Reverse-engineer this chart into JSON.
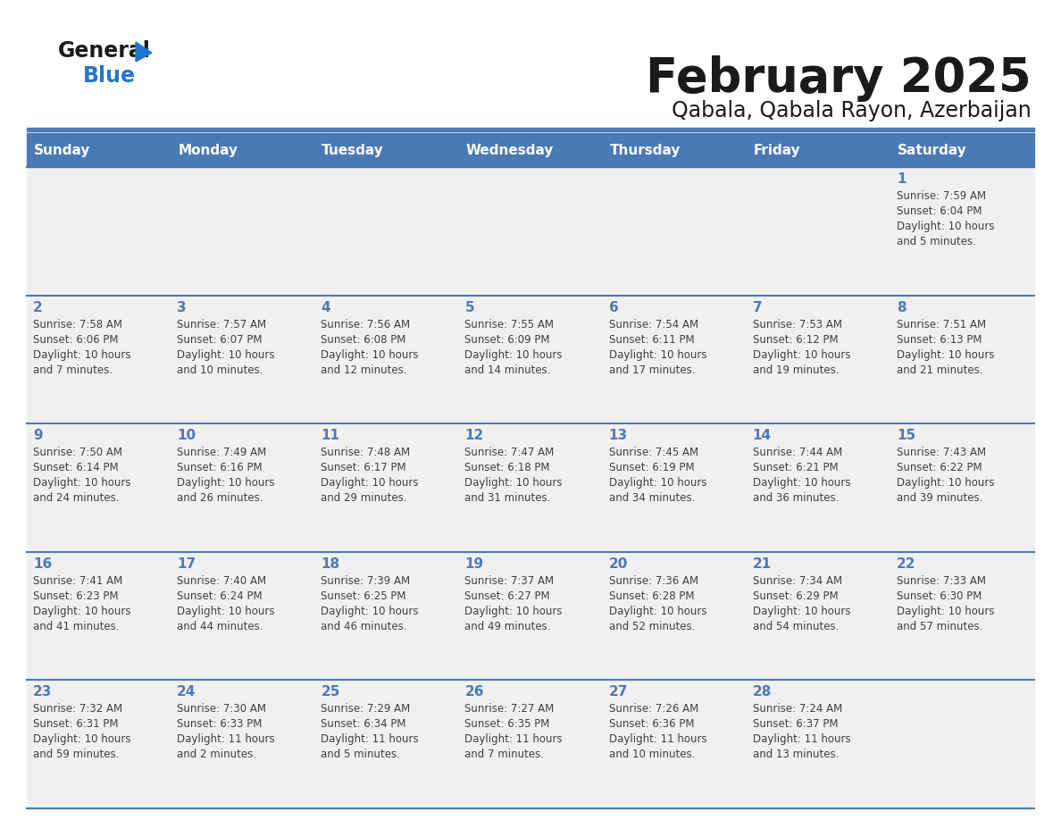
{
  "title": "February 2025",
  "subtitle": "Qabala, Qabala Rayon, Azerbaijan",
  "days_of_week": [
    "Sunday",
    "Monday",
    "Tuesday",
    "Wednesday",
    "Thursday",
    "Friday",
    "Saturday"
  ],
  "header_bg": "#4a7ab5",
  "header_text": "#ffffff",
  "cell_bg": "#f0f0f0",
  "border_color": "#4a7ab5",
  "day_number_color": "#4a7ab5",
  "info_text_color": "#404040",
  "title_color": "#1a1a1a",
  "subtitle_color": "#1a1a1a",
  "logo_general_color": "#1a1a1a",
  "logo_blue_color": "#2277cc",
  "calendar_data": [
    {
      "day": 1,
      "row": 0,
      "col": 6,
      "sunrise": "7:59 AM",
      "sunset": "6:04 PM",
      "daylight_line1": "Daylight: 10 hours",
      "daylight_line2": "and 5 minutes."
    },
    {
      "day": 2,
      "row": 1,
      "col": 0,
      "sunrise": "7:58 AM",
      "sunset": "6:06 PM",
      "daylight_line1": "Daylight: 10 hours",
      "daylight_line2": "and 7 minutes."
    },
    {
      "day": 3,
      "row": 1,
      "col": 1,
      "sunrise": "7:57 AM",
      "sunset": "6:07 PM",
      "daylight_line1": "Daylight: 10 hours",
      "daylight_line2": "and 10 minutes."
    },
    {
      "day": 4,
      "row": 1,
      "col": 2,
      "sunrise": "7:56 AM",
      "sunset": "6:08 PM",
      "daylight_line1": "Daylight: 10 hours",
      "daylight_line2": "and 12 minutes."
    },
    {
      "day": 5,
      "row": 1,
      "col": 3,
      "sunrise": "7:55 AM",
      "sunset": "6:09 PM",
      "daylight_line1": "Daylight: 10 hours",
      "daylight_line2": "and 14 minutes."
    },
    {
      "day": 6,
      "row": 1,
      "col": 4,
      "sunrise": "7:54 AM",
      "sunset": "6:11 PM",
      "daylight_line1": "Daylight: 10 hours",
      "daylight_line2": "and 17 minutes."
    },
    {
      "day": 7,
      "row": 1,
      "col": 5,
      "sunrise": "7:53 AM",
      "sunset": "6:12 PM",
      "daylight_line1": "Daylight: 10 hours",
      "daylight_line2": "and 19 minutes."
    },
    {
      "day": 8,
      "row": 1,
      "col": 6,
      "sunrise": "7:51 AM",
      "sunset": "6:13 PM",
      "daylight_line1": "Daylight: 10 hours",
      "daylight_line2": "and 21 minutes."
    },
    {
      "day": 9,
      "row": 2,
      "col": 0,
      "sunrise": "7:50 AM",
      "sunset": "6:14 PM",
      "daylight_line1": "Daylight: 10 hours",
      "daylight_line2": "and 24 minutes."
    },
    {
      "day": 10,
      "row": 2,
      "col": 1,
      "sunrise": "7:49 AM",
      "sunset": "6:16 PM",
      "daylight_line1": "Daylight: 10 hours",
      "daylight_line2": "and 26 minutes."
    },
    {
      "day": 11,
      "row": 2,
      "col": 2,
      "sunrise": "7:48 AM",
      "sunset": "6:17 PM",
      "daylight_line1": "Daylight: 10 hours",
      "daylight_line2": "and 29 minutes."
    },
    {
      "day": 12,
      "row": 2,
      "col": 3,
      "sunrise": "7:47 AM",
      "sunset": "6:18 PM",
      "daylight_line1": "Daylight: 10 hours",
      "daylight_line2": "and 31 minutes."
    },
    {
      "day": 13,
      "row": 2,
      "col": 4,
      "sunrise": "7:45 AM",
      "sunset": "6:19 PM",
      "daylight_line1": "Daylight: 10 hours",
      "daylight_line2": "and 34 minutes."
    },
    {
      "day": 14,
      "row": 2,
      "col": 5,
      "sunrise": "7:44 AM",
      "sunset": "6:21 PM",
      "daylight_line1": "Daylight: 10 hours",
      "daylight_line2": "and 36 minutes."
    },
    {
      "day": 15,
      "row": 2,
      "col": 6,
      "sunrise": "7:43 AM",
      "sunset": "6:22 PM",
      "daylight_line1": "Daylight: 10 hours",
      "daylight_line2": "and 39 minutes."
    },
    {
      "day": 16,
      "row": 3,
      "col": 0,
      "sunrise": "7:41 AM",
      "sunset": "6:23 PM",
      "daylight_line1": "Daylight: 10 hours",
      "daylight_line2": "and 41 minutes."
    },
    {
      "day": 17,
      "row": 3,
      "col": 1,
      "sunrise": "7:40 AM",
      "sunset": "6:24 PM",
      "daylight_line1": "Daylight: 10 hours",
      "daylight_line2": "and 44 minutes."
    },
    {
      "day": 18,
      "row": 3,
      "col": 2,
      "sunrise": "7:39 AM",
      "sunset": "6:25 PM",
      "daylight_line1": "Daylight: 10 hours",
      "daylight_line2": "and 46 minutes."
    },
    {
      "day": 19,
      "row": 3,
      "col": 3,
      "sunrise": "7:37 AM",
      "sunset": "6:27 PM",
      "daylight_line1": "Daylight: 10 hours",
      "daylight_line2": "and 49 minutes."
    },
    {
      "day": 20,
      "row": 3,
      "col": 4,
      "sunrise": "7:36 AM",
      "sunset": "6:28 PM",
      "daylight_line1": "Daylight: 10 hours",
      "daylight_line2": "and 52 minutes."
    },
    {
      "day": 21,
      "row": 3,
      "col": 5,
      "sunrise": "7:34 AM",
      "sunset": "6:29 PM",
      "daylight_line1": "Daylight: 10 hours",
      "daylight_line2": "and 54 minutes."
    },
    {
      "day": 22,
      "row": 3,
      "col": 6,
      "sunrise": "7:33 AM",
      "sunset": "6:30 PM",
      "daylight_line1": "Daylight: 10 hours",
      "daylight_line2": "and 57 minutes."
    },
    {
      "day": 23,
      "row": 4,
      "col": 0,
      "sunrise": "7:32 AM",
      "sunset": "6:31 PM",
      "daylight_line1": "Daylight: 10 hours",
      "daylight_line2": "and 59 minutes."
    },
    {
      "day": 24,
      "row": 4,
      "col": 1,
      "sunrise": "7:30 AM",
      "sunset": "6:33 PM",
      "daylight_line1": "Daylight: 11 hours",
      "daylight_line2": "and 2 minutes."
    },
    {
      "day": 25,
      "row": 4,
      "col": 2,
      "sunrise": "7:29 AM",
      "sunset": "6:34 PM",
      "daylight_line1": "Daylight: 11 hours",
      "daylight_line2": "and 5 minutes."
    },
    {
      "day": 26,
      "row": 4,
      "col": 3,
      "sunrise": "7:27 AM",
      "sunset": "6:35 PM",
      "daylight_line1": "Daylight: 11 hours",
      "daylight_line2": "and 7 minutes."
    },
    {
      "day": 27,
      "row": 4,
      "col": 4,
      "sunrise": "7:26 AM",
      "sunset": "6:36 PM",
      "daylight_line1": "Daylight: 11 hours",
      "daylight_line2": "and 10 minutes."
    },
    {
      "day": 28,
      "row": 4,
      "col": 5,
      "sunrise": "7:24 AM",
      "sunset": "6:37 PM",
      "daylight_line1": "Daylight: 11 hours",
      "daylight_line2": "and 13 minutes."
    }
  ],
  "num_rows": 5,
  "num_cols": 7
}
